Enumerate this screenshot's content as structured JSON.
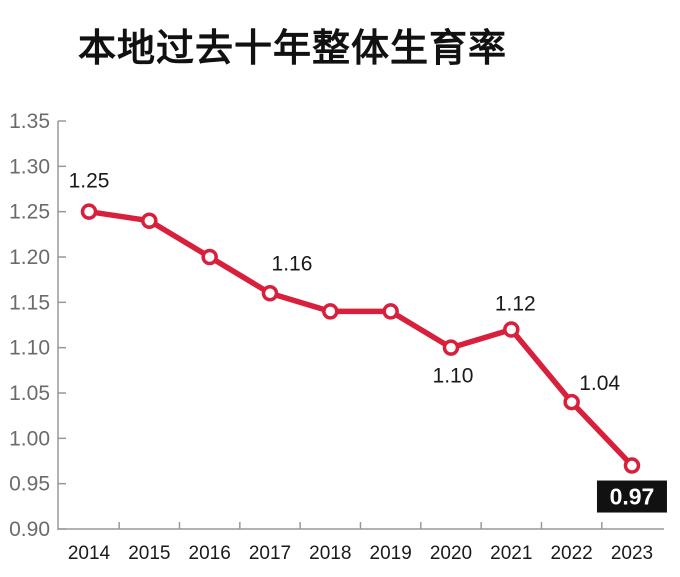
{
  "chart_data": {
    "type": "line",
    "title": "本地过去十年整体生育率",
    "xlabel": "",
    "ylabel": "",
    "categories": [
      "2014",
      "2015",
      "2016",
      "2017",
      "2018",
      "2019",
      "2020",
      "2021",
      "2022",
      "2023"
    ],
    "values": [
      1.25,
      1.24,
      1.2,
      1.16,
      1.14,
      1.14,
      1.1,
      1.12,
      1.04,
      0.97
    ],
    "ylim": [
      0.9,
      1.35
    ],
    "yticks": [
      "0.90",
      "0.95",
      "1.00",
      "1.05",
      "1.10",
      "1.15",
      "1.20",
      "1.25",
      "1.30",
      "1.35"
    ],
    "data_labels": [
      {
        "year": "2014",
        "text": "1.25"
      },
      {
        "year": "2017",
        "text": "1.16"
      },
      {
        "year": "2020",
        "text": "1.10"
      },
      {
        "year": "2021",
        "text": "1.12"
      },
      {
        "year": "2022",
        "text": "1.04"
      },
      {
        "year": "2023",
        "text": "0.97",
        "highlight": true
      }
    ],
    "grid": false,
    "line_color": "#d81f3c",
    "marker_fill": "#ffffff",
    "highlight_box_color": "#111111"
  }
}
